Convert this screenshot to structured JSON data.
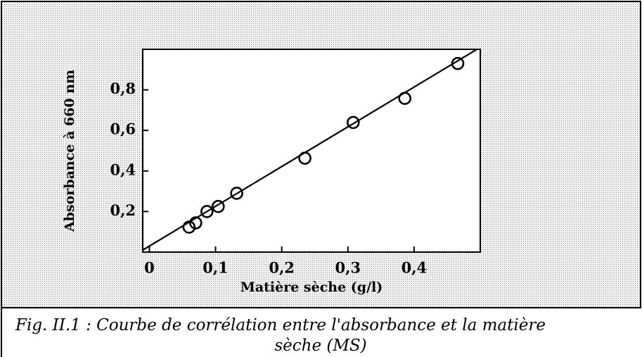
{
  "chart_data": {
    "type": "scatter",
    "x_label": "Matière sèche (g/l)",
    "y_label": "Absorbance à 660 nm",
    "x": [
      0.06,
      0.07,
      0.087,
      0.104,
      0.132,
      0.235,
      0.308,
      0.386,
      0.466
    ],
    "values": [
      0.123,
      0.144,
      0.2,
      0.225,
      0.29,
      0.463,
      0.639,
      0.758,
      0.93
    ],
    "color": "#000000",
    "fit_line": {
      "x": [
        -0.01,
        0.495
      ],
      "values": [
        0.01,
        1.0
      ]
    },
    "xlim": [
      -0.01,
      0.5
    ],
    "ylim": [
      0,
      1.0
    ],
    "xticks": [
      0,
      {
        "value": 0.1,
        "label": "0,1"
      },
      {
        "value": 0.2,
        "label": "0,2"
      },
      {
        "value": 0.3,
        "label": "0,3"
      },
      {
        "value": 0.4,
        "label": "0,4"
      }
    ],
    "yticks": [
      {
        "value": 0.2,
        "label": "0,2"
      },
      {
        "value": 0.4,
        "label": "0,4"
      },
      {
        "value": 0.6,
        "label": "0,6"
      },
      {
        "value": 0.8,
        "label": "0,8"
      }
    ],
    "grid": false,
    "caption": [
      "Fig.  II.1 :  Courbe de corrélation entre l'absorbance et la matière",
      "sèche (MS)"
    ]
  }
}
